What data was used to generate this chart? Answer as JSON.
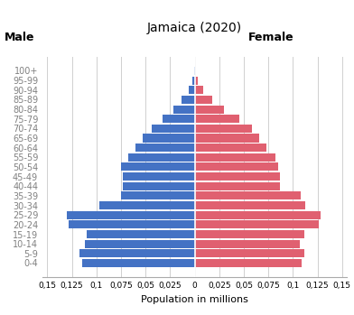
{
  "title": "Jamaica (2020)",
  "xlabel": "Population in millions",
  "male_label": "Male",
  "female_label": "Female",
  "age_groups": [
    "0-4",
    "5-9",
    "10-14",
    "15-19",
    "20-24",
    "25-29",
    "30-34",
    "35-39",
    "40-44",
    "45-49",
    "50-54",
    "55-59",
    "60-64",
    "65-69",
    "70-74",
    "75-79",
    "80-84",
    "85-89",
    "90-94",
    "95-99",
    "100+"
  ],
  "male_values": [
    0.115,
    0.117,
    0.112,
    0.11,
    0.128,
    0.13,
    0.097,
    0.075,
    0.073,
    0.073,
    0.075,
    0.068,
    0.06,
    0.053,
    0.044,
    0.033,
    0.022,
    0.013,
    0.006,
    0.002,
    0.0005
  ],
  "female_values": [
    0.109,
    0.112,
    0.107,
    0.112,
    0.126,
    0.128,
    0.113,
    0.108,
    0.087,
    0.087,
    0.085,
    0.082,
    0.073,
    0.066,
    0.058,
    0.045,
    0.03,
    0.018,
    0.009,
    0.003,
    0.0005
  ],
  "male_color": "#4472C4",
  "female_color": "#E06070",
  "xlim": 0.155,
  "background_color": "#ffffff",
  "grid_color": "#d0d0d0"
}
